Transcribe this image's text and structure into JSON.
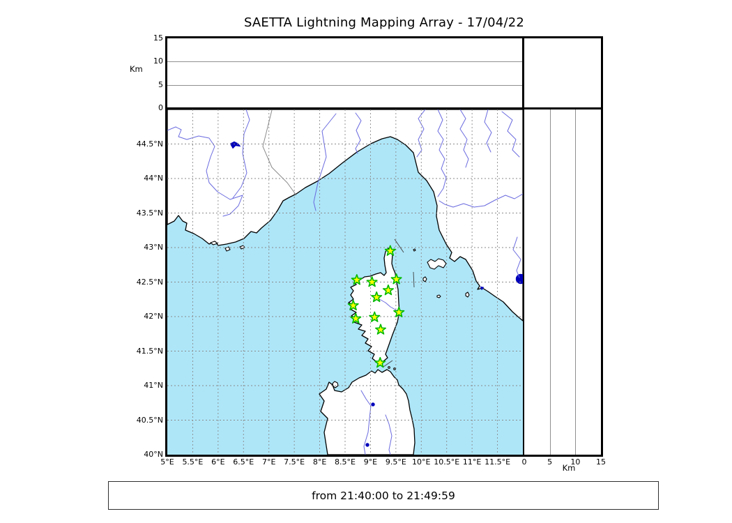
{
  "title": "SAETTA Lightning Mapping Array - 17/04/22",
  "time_range": {
    "text": "from 21:40:00 to 21:49:59"
  },
  "altitude_axis": {
    "unit": "Km",
    "max": 15,
    "tick_values": [
      0,
      5,
      10,
      15
    ],
    "tick_labels": [
      "0",
      "5",
      "10",
      "15"
    ],
    "gridline_values": [
      5,
      10
    ]
  },
  "map_axes": {
    "lon_range": [
      5,
      12
    ],
    "lat_range": [
      40,
      45
    ],
    "lon_ticks": [
      {
        "label": "5°E",
        "value": 5
      },
      {
        "label": "5.5°E",
        "value": 5.5
      },
      {
        "label": "6°E",
        "value": 6
      },
      {
        "label": "6.5°E",
        "value": 6.5
      },
      {
        "label": "7°E",
        "value": 7
      },
      {
        "label": "7.5°E",
        "value": 7.5
      },
      {
        "label": "8°E",
        "value": 8
      },
      {
        "label": "8.5°E",
        "value": 8.5
      },
      {
        "label": "9°E",
        "value": 9
      },
      {
        "label": "9.5°E",
        "value": 9.5
      },
      {
        "label": "10°E",
        "value": 10
      },
      {
        "label": "10.5°E",
        "value": 10.5
      },
      {
        "label": "11°E",
        "value": 11
      },
      {
        "label": "11.5°E",
        "value": 11.5
      }
    ],
    "lat_ticks": [
      {
        "label": "40°N",
        "value": 40
      },
      {
        "label": "40.5°N",
        "value": 40.5
      },
      {
        "label": "41°N",
        "value": 41
      },
      {
        "label": "41.5°N",
        "value": 41.5
      },
      {
        "label": "42°N",
        "value": 42
      },
      {
        "label": "42.5°N",
        "value": 42.5
      },
      {
        "label": "43°N",
        "value": 43
      },
      {
        "label": "43.5°N",
        "value": 43.5
      },
      {
        "label": "44°N",
        "value": 44
      },
      {
        "label": "44.5°N",
        "value": 44.5
      }
    ]
  },
  "stations": [
    {
      "lon": 9.39,
      "lat": 42.95
    },
    {
      "lon": 8.73,
      "lat": 42.53
    },
    {
      "lon": 9.03,
      "lat": 42.5
    },
    {
      "lon": 9.51,
      "lat": 42.54
    },
    {
      "lon": 9.35,
      "lat": 42.38
    },
    {
      "lon": 9.12,
      "lat": 42.28
    },
    {
      "lon": 8.66,
      "lat": 42.16
    },
    {
      "lon": 9.56,
      "lat": 42.06
    },
    {
      "lon": 8.71,
      "lat": 41.97
    },
    {
      "lon": 9.08,
      "lat": 41.99
    },
    {
      "lon": 9.2,
      "lat": 41.81
    },
    {
      "lon": 9.19,
      "lat": 41.33
    }
  ],
  "colors": {
    "sea": "#aee6f8",
    "land": "#ffffff",
    "coast": "#000000",
    "river": "#6a6ae0",
    "lake": "#0000bb",
    "grid": "#8a8a8a",
    "star_fill": "#ffff00",
    "star_stroke": "#00b800"
  }
}
